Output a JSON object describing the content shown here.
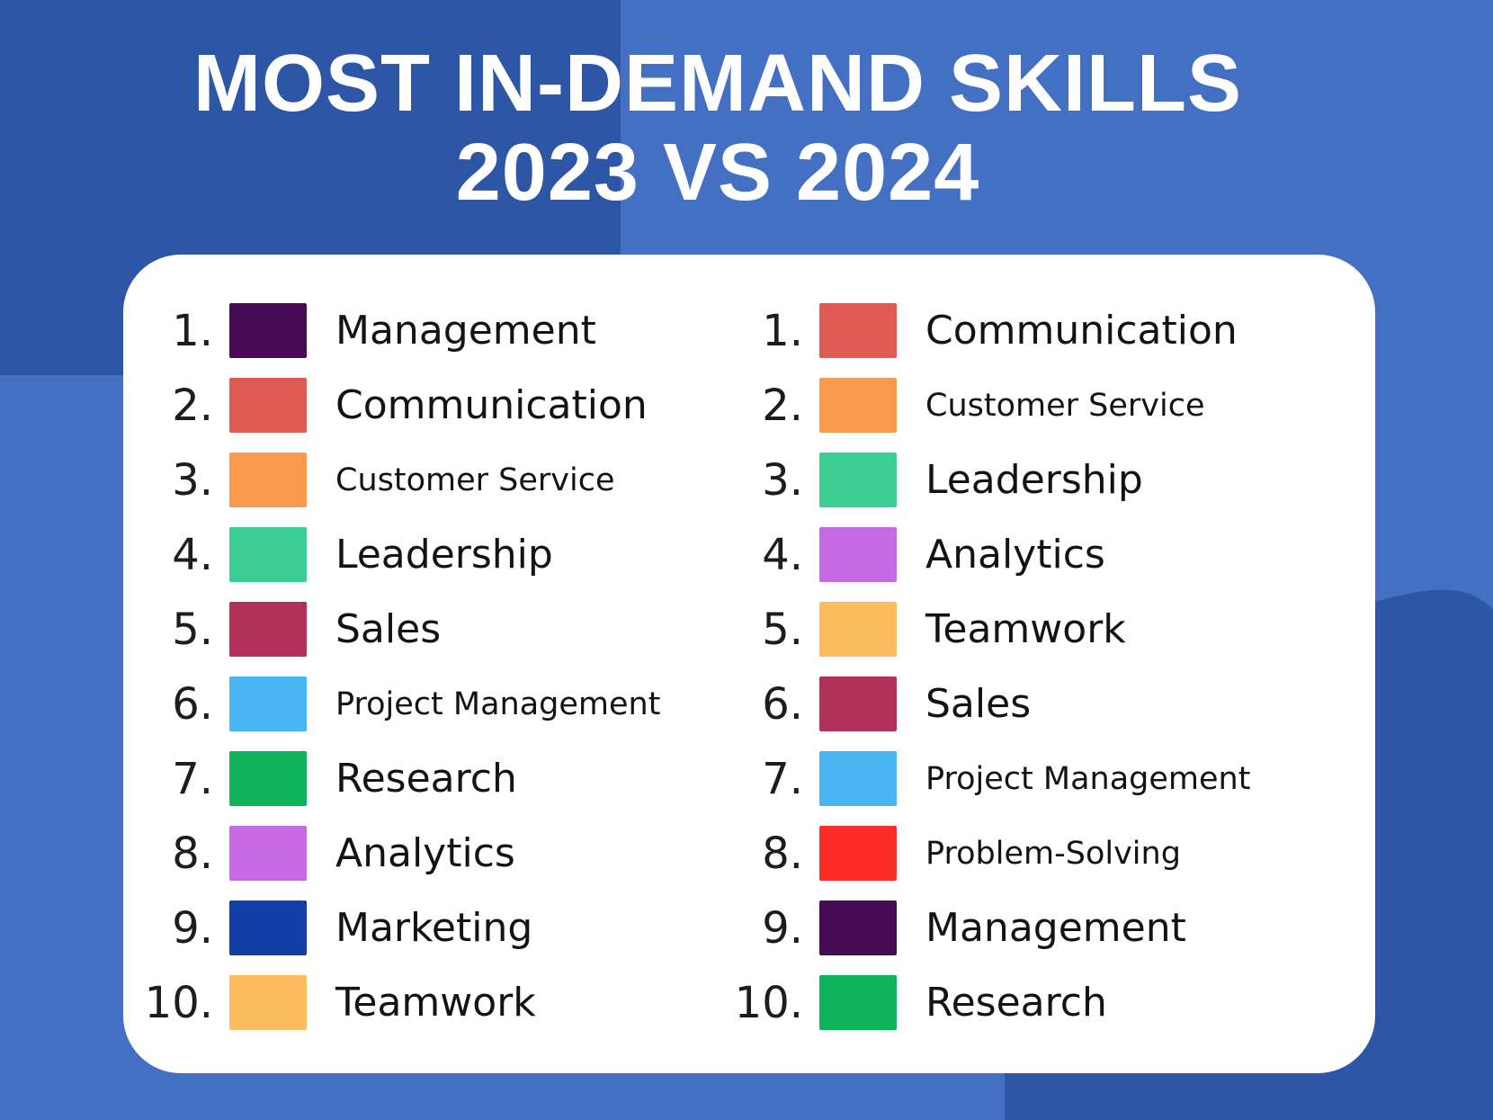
{
  "title": {
    "line1": "MOST IN-DEMAND SKILLS",
    "line2": "2023 VS 2024"
  },
  "colors": {
    "background": "#4470c4",
    "background_dark_blocks": "#2d57a6",
    "card_background": "#ffffff",
    "title_text": "#ffffff",
    "list_text": "#131313"
  },
  "columns": [
    {
      "items": [
        {
          "rank": "1.",
          "label": "Management",
          "color": "#460b54",
          "text_size": "large"
        },
        {
          "rank": "2.",
          "label": "Communication",
          "color": "#de5a52",
          "text_size": "large"
        },
        {
          "rank": "3.",
          "label": "Customer Service",
          "color": "#f9994e",
          "text_size": "small"
        },
        {
          "rank": "4.",
          "label": "Leadership",
          "color": "#3bce92",
          "text_size": "large"
        },
        {
          "rank": "5.",
          "label": "Sales",
          "color": "#b23059",
          "text_size": "large"
        },
        {
          "rank": "6.",
          "label": "Project Management",
          "color": "#47b6f3",
          "text_size": "small"
        },
        {
          "rank": "7.",
          "label": "Research",
          "color": "#0db45c",
          "text_size": "large"
        },
        {
          "rank": "8.",
          "label": "Analytics",
          "color": "#c56ae2",
          "text_size": "large"
        },
        {
          "rank": "9.",
          "label": "Marketing",
          "color": "#1340a6",
          "text_size": "large"
        },
        {
          "rank": "10.",
          "label": "Teamwork",
          "color": "#fbbd60",
          "text_size": "large"
        }
      ]
    },
    {
      "items": [
        {
          "rank": "1.",
          "label": "Communication",
          "color": "#de5a52",
          "text_size": "large"
        },
        {
          "rank": "2.",
          "label": "Customer Service",
          "color": "#f9994e",
          "text_size": "small"
        },
        {
          "rank": "3.",
          "label": "Leadership",
          "color": "#3bce92",
          "text_size": "large"
        },
        {
          "rank": "4.",
          "label": "Analytics",
          "color": "#c56ae2",
          "text_size": "large"
        },
        {
          "rank": "5.",
          "label": "Teamwork",
          "color": "#fbbd60",
          "text_size": "large"
        },
        {
          "rank": "6.",
          "label": "Sales",
          "color": "#b23059",
          "text_size": "large"
        },
        {
          "rank": "7.",
          "label": "Project Management",
          "color": "#47b6f3",
          "text_size": "small"
        },
        {
          "rank": "8.",
          "label": "Problem-Solving",
          "color": "#fb2d26",
          "text_size": "small"
        },
        {
          "rank": "9.",
          "label": "Management",
          "color": "#460b54",
          "text_size": "large"
        },
        {
          "rank": "10.",
          "label": "Research",
          "color": "#0db45c",
          "text_size": "large"
        }
      ]
    }
  ],
  "chart_data": {
    "type": "table",
    "title": "MOST IN-DEMAND SKILLS 2023 VS 2024",
    "series": [
      {
        "name": "2023",
        "ranking": [
          "Management",
          "Communication",
          "Customer Service",
          "Leadership",
          "Sales",
          "Project Management",
          "Research",
          "Analytics",
          "Marketing",
          "Teamwork"
        ]
      },
      {
        "name": "2024",
        "ranking": [
          "Communication",
          "Customer Service",
          "Leadership",
          "Analytics",
          "Teamwork",
          "Sales",
          "Project Management",
          "Problem-Solving",
          "Management",
          "Research"
        ]
      }
    ],
    "skill_colors": {
      "Management": "#460b54",
      "Communication": "#de5a52",
      "Customer Service": "#f9994e",
      "Leadership": "#3bce92",
      "Sales": "#b23059",
      "Project Management": "#47b6f3",
      "Research": "#0db45c",
      "Analytics": "#c56ae2",
      "Marketing": "#1340a6",
      "Teamwork": "#fbbd60",
      "Problem-Solving": "#fb2d26"
    },
    "legend_position": "inline-swatches",
    "grid": false
  }
}
